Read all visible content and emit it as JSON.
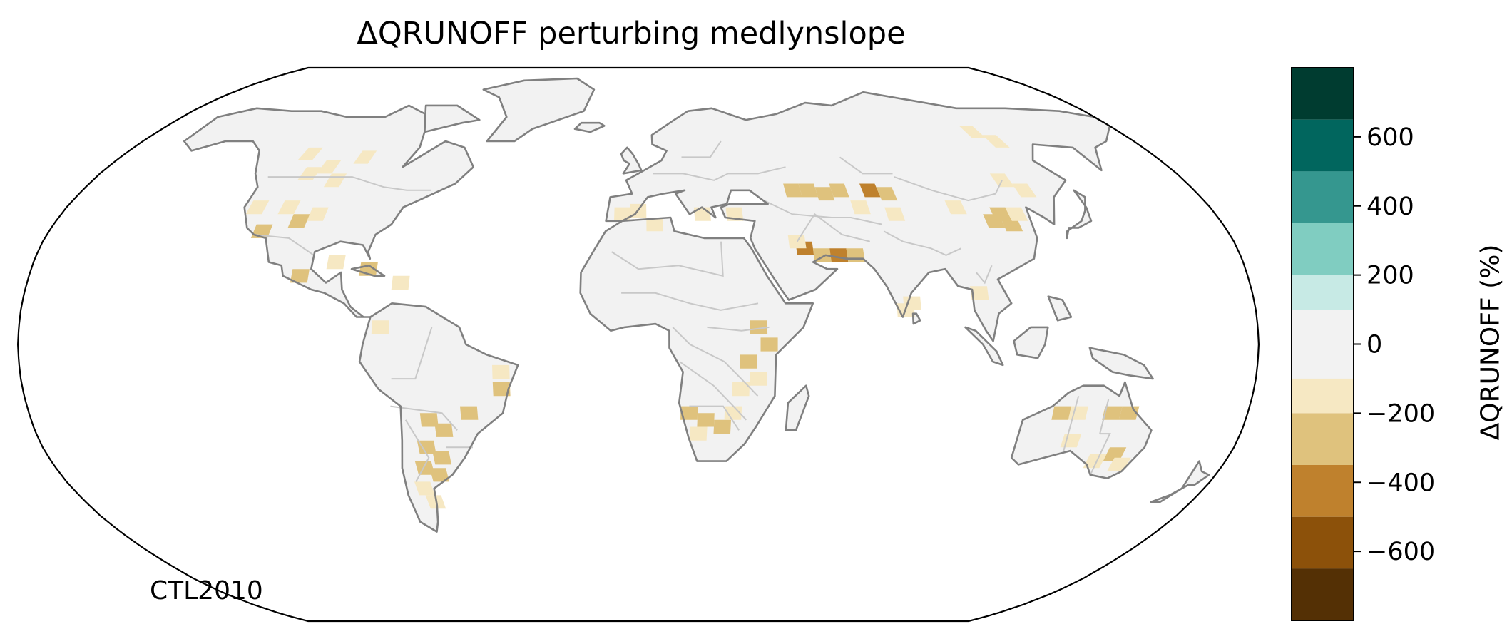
{
  "title": "ΔQRUNOFF perturbing medlynslope",
  "corner_label": "CTL2010",
  "projection": "Robinson",
  "map_colors": {
    "ocean": "#ffffff",
    "land_background": "#f2f2f2",
    "coastline": "#808080",
    "borders": "#c8c8c8"
  },
  "colorbar": {
    "label": "ΔQRUNOFF (%)",
    "ticks": [
      {
        "value": 600,
        "text": "600"
      },
      {
        "value": 400,
        "text": "400"
      },
      {
        "value": 200,
        "text": "200"
      },
      {
        "value": 0,
        "text": "0"
      },
      {
        "value": -200,
        "text": "−200"
      },
      {
        "value": -400,
        "text": "−400"
      },
      {
        "value": -600,
        "text": "−600"
      }
    ],
    "range": [
      -800,
      800
    ],
    "bins": [
      {
        "min": 650,
        "max": 800,
        "color": "#003c30"
      },
      {
        "min": 500,
        "max": 650,
        "color": "#01665e"
      },
      {
        "min": 350,
        "max": 500,
        "color": "#35978f"
      },
      {
        "min": 200,
        "max": 350,
        "color": "#80cdc1"
      },
      {
        "min": 100,
        "max": 200,
        "color": "#c7eae5"
      },
      {
        "min": -100,
        "max": 100,
        "color": "#f2f2f2"
      },
      {
        "min": -200,
        "max": -100,
        "color": "#f6e8c3"
      },
      {
        "min": -350,
        "max": -200,
        "color": "#dfc27d"
      },
      {
        "min": -500,
        "max": -350,
        "color": "#bf812d"
      },
      {
        "min": -650,
        "max": -500,
        "color": "#8c510a"
      },
      {
        "min": -800,
        "max": -650,
        "color": "#543005"
      }
    ]
  },
  "chart_data": {
    "type": "heatmap",
    "variable": "ΔQRUNOFF",
    "units": "%",
    "grid_cells": [
      {
        "lon": -110,
        "lat": 50,
        "value": -150
      },
      {
        "lon": -105,
        "lat": 52,
        "value": -150
      },
      {
        "lon": -100,
        "lat": 48,
        "value": -150
      },
      {
        "lon": -95,
        "lat": 55,
        "value": -150
      },
      {
        "lon": -115,
        "lat": 56,
        "value": -150
      },
      {
        "lon": -120,
        "lat": 40,
        "value": -150
      },
      {
        "lon": -110,
        "lat": 40,
        "value": -150
      },
      {
        "lon": -100,
        "lat": 38,
        "value": -150
      },
      {
        "lon": -105,
        "lat": 36,
        "value": -250
      },
      {
        "lon": -115,
        "lat": 33,
        "value": -250
      },
      {
        "lon": -100,
        "lat": 20,
        "value": -250
      },
      {
        "lon": -90,
        "lat": 24,
        "value": -150
      },
      {
        "lon": -80,
        "lat": 22,
        "value": -250
      },
      {
        "lon": -70,
        "lat": 18,
        "value": -150
      },
      {
        "lon": -75,
        "lat": 5,
        "value": -150
      },
      {
        "lon": -40,
        "lat": -8,
        "value": -150
      },
      {
        "lon": -40,
        "lat": -13,
        "value": -250
      },
      {
        "lon": -50,
        "lat": -20,
        "value": -250
      },
      {
        "lon": -62,
        "lat": -22,
        "value": -250
      },
      {
        "lon": -58,
        "lat": -25,
        "value": -250
      },
      {
        "lon": -64,
        "lat": -30,
        "value": -250
      },
      {
        "lon": -60,
        "lat": -33,
        "value": -250
      },
      {
        "lon": -66,
        "lat": -36,
        "value": -250
      },
      {
        "lon": -62,
        "lat": -38,
        "value": -250
      },
      {
        "lon": -68,
        "lat": -42,
        "value": -150
      },
      {
        "lon": -66,
        "lat": -46,
        "value": -150
      },
      {
        "lon": -5,
        "lat": 38,
        "value": -150
      },
      {
        "lon": 0,
        "lat": 39,
        "value": -150
      },
      {
        "lon": 20,
        "lat": 38,
        "value": -150
      },
      {
        "lon": 30,
        "lat": 38,
        "value": -150
      },
      {
        "lon": 5,
        "lat": 35,
        "value": -150
      },
      {
        "lon": 35,
        "lat": 5,
        "value": -250
      },
      {
        "lon": 38,
        "lat": 0,
        "value": -250
      },
      {
        "lon": 32,
        "lat": -5,
        "value": -250
      },
      {
        "lon": 35,
        "lat": -10,
        "value": -150
      },
      {
        "lon": 30,
        "lat": -13,
        "value": -150
      },
      {
        "lon": 15,
        "lat": -20,
        "value": -250
      },
      {
        "lon": 20,
        "lat": -22,
        "value": -250
      },
      {
        "lon": 25,
        "lat": -24,
        "value": -250
      },
      {
        "lon": 18,
        "lat": -26,
        "value": -150
      },
      {
        "lon": 28,
        "lat": -20,
        "value": -150
      },
      {
        "lon": 50,
        "lat": 45,
        "value": -250
      },
      {
        "lon": 55,
        "lat": 45,
        "value": -250
      },
      {
        "lon": 60,
        "lat": 44,
        "value": -250
      },
      {
        "lon": 65,
        "lat": 45,
        "value": -250
      },
      {
        "lon": 75,
        "lat": 45,
        "value": -400
      },
      {
        "lon": 80,
        "lat": 44,
        "value": -250
      },
      {
        "lon": 70,
        "lat": 40,
        "value": -150
      },
      {
        "lon": 80,
        "lat": 38,
        "value": -150
      },
      {
        "lon": 50,
        "lat": 28,
        "value": -400
      },
      {
        "lon": 55,
        "lat": 26,
        "value": -250
      },
      {
        "lon": 60,
        "lat": 26,
        "value": -400
      },
      {
        "lon": 65,
        "lat": 26,
        "value": -250
      },
      {
        "lon": 48,
        "lat": 30,
        "value": -150
      },
      {
        "lon": 110,
        "lat": 36,
        "value": -250
      },
      {
        "lon": 115,
        "lat": 35,
        "value": -250
      },
      {
        "lon": 113,
        "lat": 38,
        "value": -250
      },
      {
        "lon": 118,
        "lat": 38,
        "value": -150
      },
      {
        "lon": 100,
        "lat": 40,
        "value": -150
      },
      {
        "lon": 120,
        "lat": 48,
        "value": -150
      },
      {
        "lon": 125,
        "lat": 45,
        "value": -150
      },
      {
        "lon": 130,
        "lat": 60,
        "value": -150
      },
      {
        "lon": 125,
        "lat": 63,
        "value": -150
      },
      {
        "lon": 80,
        "lat": 12,
        "value": -150
      },
      {
        "lon": 78,
        "lat": 10,
        "value": -150
      },
      {
        "lon": 100,
        "lat": 15,
        "value": -150
      },
      {
        "lon": 125,
        "lat": -20,
        "value": -250
      },
      {
        "lon": 130,
        "lat": -20,
        "value": -150
      },
      {
        "lon": 140,
        "lat": -20,
        "value": -250
      },
      {
        "lon": 145,
        "lat": -20,
        "value": -250
      },
      {
        "lon": 145,
        "lat": -32,
        "value": -250
      },
      {
        "lon": 140,
        "lat": -34,
        "value": -150
      },
      {
        "lon": 130,
        "lat": -28,
        "value": -150
      },
      {
        "lon": 148,
        "lat": -35,
        "value": -150
      }
    ]
  }
}
